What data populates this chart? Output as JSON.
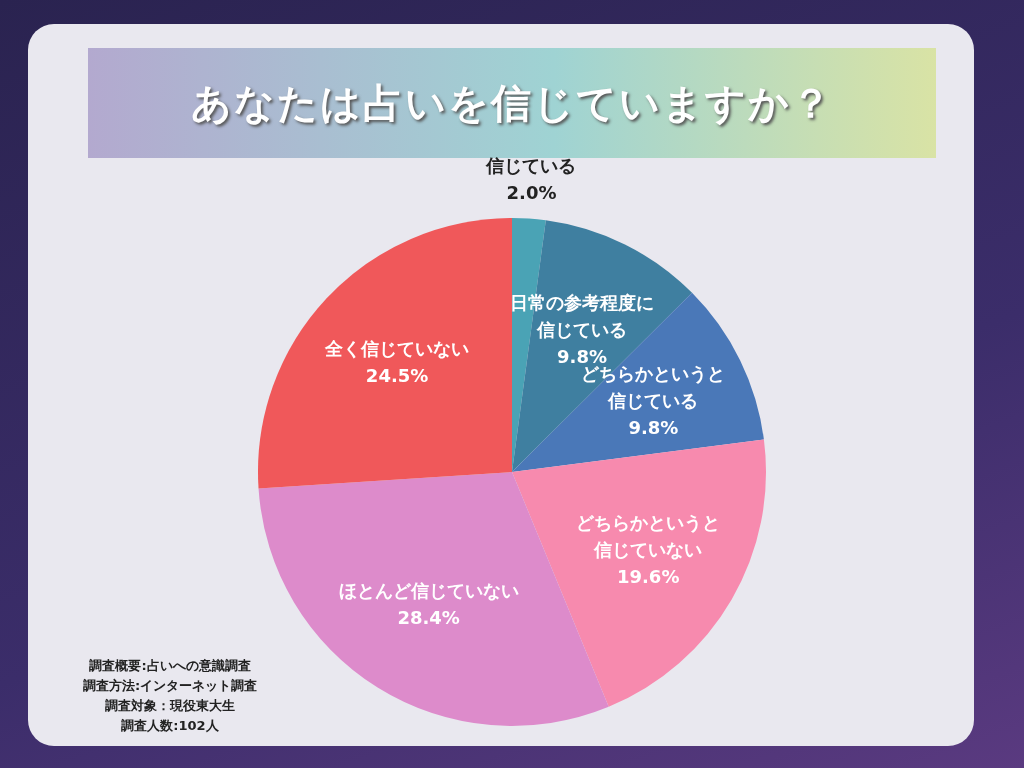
{
  "chart_data": {
    "type": "pie",
    "title": "あなたは占いを信じていますか？",
    "categories": [
      "信じている",
      "日常の参考程度に信じている",
      "どちらかというと信じている",
      "どちらかというと信じていない",
      "ほとんど信じていない",
      "全く信じていない"
    ],
    "value_labels": [
      "2.0%",
      "9.8%",
      "9.8%",
      "19.6%",
      "28.4%",
      "24.5%"
    ],
    "values": [
      2.0,
      9.8,
      9.8,
      19.6,
      28.4,
      24.5
    ],
    "colors": [
      "#4aa3b5",
      "#3f7fa0",
      "#4a78b8",
      "#f78aae",
      "#dd8bcb",
      "#f0585a"
    ],
    "data_labels": true,
    "legend": false,
    "annotations": [
      "調査概要:占いへの意識調査",
      "調査方法:インターネット調査",
      "調査対象：現役東大生",
      "調査人数:102人"
    ]
  }
}
